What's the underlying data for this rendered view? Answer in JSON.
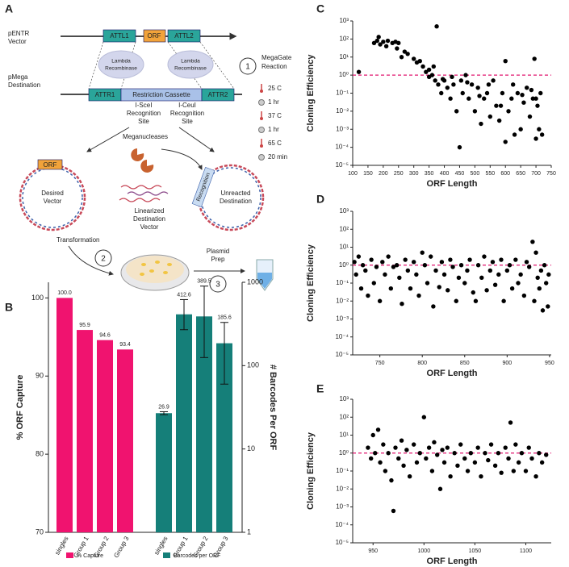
{
  "panel_labels": [
    "A",
    "B",
    "C",
    "D",
    "E"
  ],
  "diagram": {
    "pentr": [
      "pENTR",
      "Vector"
    ],
    "attl1": "ATTL1",
    "orf_top": "ORF",
    "attl2": "ATTL2",
    "lambda_left": [
      "Lambda",
      "Recombinase"
    ],
    "lambda_right": [
      "Lambda",
      "Recombinase"
    ],
    "pmega": [
      "pMega",
      "Destination"
    ],
    "attr1": "ATTR1",
    "cassette": "Restriction Cassette",
    "attr2": "ATTR2",
    "scei": [
      "I-SceI",
      "Recognition",
      "Site"
    ],
    "ceui": [
      "I-CeuI",
      "Recognition",
      "Site"
    ],
    "step1": "1",
    "megagate": [
      "MegaGate",
      "Reaction"
    ],
    "conditions": [
      "25 C",
      "1 hr",
      "37 C",
      "1 hr",
      "65 C",
      "20 min"
    ],
    "meganucleases": "Meganucleases",
    "orf_vector": "ORF",
    "desired": [
      "Desired",
      "Vector"
    ],
    "recognition": "Recognition",
    "unreacted": [
      "Unreacted",
      "Destination"
    ],
    "linearized": [
      "Linearized",
      "Destination",
      "Vector"
    ],
    "transformation": "Transformation",
    "step2": "2",
    "plasmid_prep": [
      "Plasmid",
      "Prep"
    ],
    "step3": "3"
  },
  "chart_data": [
    {
      "type": "bar",
      "ylabel": "% ORF Capture",
      "y2label": "# Barcodes Per ORF",
      "categories": [
        "singles",
        "Group 1",
        "Group 2",
        "Group 3"
      ],
      "ylim": [
        70,
        102
      ],
      "yticks": [
        70,
        80,
        90,
        100
      ],
      "y2lim": [
        1,
        1000
      ],
      "y2ticks": [
        1,
        10,
        100,
        1000
      ],
      "log_y2": true,
      "legend": "bottom",
      "series": [
        {
          "name": "% Capture",
          "color": "#f0136f",
          "values": [
            100,
            95.9,
            94.6,
            93.4
          ],
          "value_labels": [
            "100.0",
            "95.9",
            "94.6",
            "93.4"
          ]
        },
        {
          "name": "Barcodes per ORF",
          "color": "#157f79",
          "axis": "y2",
          "values": [
            26.9,
            412.6,
            389.5,
            185.6
          ],
          "error_ranges": [
            [
              25.8,
              28
            ],
            [
              270,
              620
            ],
            [
              125,
              900
            ],
            [
              60,
              330
            ]
          ]
        }
      ]
    },
    {
      "type": "scatter",
      "xlabel": "ORF Length",
      "ylabel": "Cloning Efficiency",
      "color": "#000000",
      "xlim": [
        100,
        750
      ],
      "xticks": [
        100,
        150,
        200,
        250,
        300,
        350,
        400,
        450,
        500,
        550,
        600,
        650,
        700,
        750
      ],
      "log_y": true,
      "ylim": [
        1e-05,
        1000
      ],
      "yticks": [
        {
          "value": 1e-05,
          "label": "10⁻⁵"
        },
        {
          "value": 0.0001,
          "label": "10⁻⁴"
        },
        {
          "value": 0.001,
          "label": "10⁻³"
        },
        {
          "value": 0.01,
          "label": "10⁻²"
        },
        {
          "value": 0.1,
          "label": "10⁻¹"
        },
        {
          "value": 1,
          "label": "10⁰"
        },
        {
          "value": 10,
          "label": "10¹"
        },
        {
          "value": 100,
          "label": "10²"
        },
        {
          "value": 1000,
          "label": "10³"
        }
      ],
      "reference_line": {
        "value": 1,
        "color": "#e0156e"
      },
      "x": [
        120,
        170,
        180,
        185,
        190,
        200,
        210,
        215,
        230,
        240,
        245,
        250,
        260,
        270,
        280,
        300,
        310,
        320,
        330,
        340,
        350,
        360,
        370,
        375,
        380,
        390,
        400,
        410,
        420,
        430,
        440,
        450,
        455,
        460,
        470,
        480,
        490,
        500,
        510,
        520,
        530,
        540,
        550,
        560,
        570,
        580,
        590,
        600,
        600,
        610,
        620,
        630,
        640,
        650,
        660,
        670,
        680,
        690,
        695,
        700,
        705,
        710,
        715,
        720,
        350,
        365,
        395,
        425,
        475,
        515,
        545,
        585,
        625,
        655,
        685,
        700
      ],
      "values": [
        1.5,
        60,
        80,
        130,
        50,
        70,
        40,
        80,
        60,
        70,
        30,
        60,
        10,
        20,
        15,
        8,
        5,
        6,
        3,
        1.5,
        2,
        1,
        0.5,
        500,
        0.3,
        0.1,
        0.5,
        0.2,
        0.05,
        0.3,
        0.01,
        0.0001,
        0.5,
        0.1,
        1,
        0.05,
        0.3,
        0.01,
        0.2,
        0.002,
        0.05,
        0.1,
        0.005,
        0.5,
        0.02,
        0.003,
        0.1,
        6,
        0.0002,
        0.01,
        0.05,
        0.0005,
        0.1,
        0.001,
        0.03,
        0.2,
        0.005,
        0.05,
        8,
        0.0003,
        0.02,
        0.001,
        0.1,
        0.0005,
        0.8,
        3,
        0.6,
        0.8,
        0.4,
        0.07,
        0.3,
        0.02,
        0.3,
        0.08,
        0.15,
        0.05
      ]
    },
    {
      "type": "scatter",
      "xlabel": "ORF Length",
      "ylabel": "Cloning Efficiency",
      "color": "#000000",
      "xlim": [
        718,
        952
      ],
      "xticks": [
        750,
        800,
        850,
        900,
        950
      ],
      "log_y": true,
      "ylim": [
        1e-05,
        1000
      ],
      "yticks": [
        {
          "value": 1e-05,
          "label": "10⁻⁵"
        },
        {
          "value": 0.0001,
          "label": "10⁻⁴"
        },
        {
          "value": 0.001,
          "label": "10⁻³"
        },
        {
          "value": 0.01,
          "label": "10⁻²"
        },
        {
          "value": 0.1,
          "label": "10⁻¹"
        },
        {
          "value": 1,
          "label": "10⁰"
        },
        {
          "value": 10,
          "label": "10¹"
        },
        {
          "value": 100,
          "label": "10²"
        },
        {
          "value": 1000,
          "label": "10³"
        }
      ],
      "reference_line": {
        "value": 1,
        "color": "#e0156e"
      },
      "x": [
        720,
        722,
        725,
        728,
        730,
        733,
        736,
        740,
        743,
        746,
        750,
        753,
        756,
        760,
        763,
        766,
        770,
        773,
        776,
        780,
        783,
        786,
        790,
        793,
        796,
        800,
        803,
        806,
        810,
        813,
        816,
        820,
        823,
        826,
        830,
        833,
        836,
        840,
        843,
        846,
        850,
        853,
        856,
        860,
        863,
        866,
        870,
        873,
        876,
        880,
        883,
        886,
        890,
        893,
        896,
        900,
        903,
        906,
        910,
        913,
        916,
        920,
        923,
        926,
        930,
        932,
        934,
        936,
        938,
        940,
        942,
        944,
        946,
        948,
        949
      ],
      "values": [
        1.5,
        0.3,
        3,
        0.05,
        1,
        0.5,
        0.02,
        2,
        0.1,
        0.8,
        0.01,
        1.5,
        0.3,
        3,
        0.05,
        0.8,
        1,
        0.2,
        0.007,
        2,
        0.5,
        0.05,
        1.5,
        0.3,
        0.02,
        5,
        1,
        0.1,
        3,
        0.005,
        0.5,
        0.06,
        1.5,
        0.3,
        0.04,
        2,
        0.8,
        0.01,
        0.2,
        1,
        0.1,
        0.5,
        2,
        0.03,
        0.01,
        1,
        0.2,
        3,
        0.04,
        0.5,
        1.5,
        0.08,
        0.3,
        2,
        0.01,
        0.5,
        1,
        0.05,
        2,
        0.1,
        0.3,
        0.02,
        1.5,
        0.8,
        20,
        0.01,
        5,
        0.2,
        0.05,
        0.5,
        0.003,
        1,
        0.1,
        0.005,
        0.3
      ]
    },
    {
      "type": "scatter",
      "xlabel": "ORF Length",
      "ylabel": "Cloning Efficiency",
      "color": "#000000",
      "xlim": [
        930,
        1125
      ],
      "xticks": [
        950,
        1000,
        1050,
        1100
      ],
      "log_y": true,
      "ylim": [
        1e-05,
        1000
      ],
      "yticks": [
        {
          "value": 1e-05,
          "label": "10⁻⁵"
        },
        {
          "value": 0.0001,
          "label": "10⁻⁴"
        },
        {
          "value": 0.001,
          "label": "10⁻³"
        },
        {
          "value": 0.01,
          "label": "10⁻²"
        },
        {
          "value": 0.1,
          "label": "10⁻¹"
        },
        {
          "value": 1,
          "label": "10⁰"
        },
        {
          "value": 10,
          "label": "10¹"
        },
        {
          "value": 100,
          "label": "10²"
        },
        {
          "value": 1000,
          "label": "10³"
        }
      ],
      "reference_line": {
        "value": 1,
        "color": "#e0156e"
      },
      "x": [
        945,
        948,
        950,
        952,
        955,
        957,
        960,
        962,
        965,
        968,
        970,
        972,
        975,
        978,
        980,
        983,
        986,
        990,
        993,
        996,
        1000,
        1002,
        1005,
        1008,
        1010,
        1013,
        1016,
        1018,
        1020,
        1023,
        1026,
        1030,
        1033,
        1036,
        1040,
        1043,
        1046,
        1050,
        1053,
        1056,
        1060,
        1063,
        1066,
        1070,
        1073,
        1076,
        1080,
        1083,
        1085,
        1088,
        1090,
        1093,
        1096,
        1100,
        1103,
        1106,
        1110,
        1113,
        1116,
        1120
      ],
      "values": [
        2,
        0.5,
        10,
        1,
        20,
        0.3,
        3,
        0.1,
        1,
        0.03,
        0.0006,
        2,
        0.5,
        5,
        0.2,
        1.5,
        0.05,
        3,
        0.3,
        1,
        100,
        0.5,
        2,
        0.1,
        4,
        0.8,
        0.01,
        1.5,
        0.3,
        2,
        0.05,
        1,
        0.2,
        3,
        0.5,
        0.1,
        1,
        0.3,
        2,
        0.05,
        1,
        0.4,
        3,
        0.2,
        1,
        0.08,
        2,
        0.5,
        50,
        0.1,
        3,
        0.3,
        1,
        0.1,
        2,
        0.5,
        0.05,
        1,
        0.3,
        0.8
      ]
    }
  ]
}
